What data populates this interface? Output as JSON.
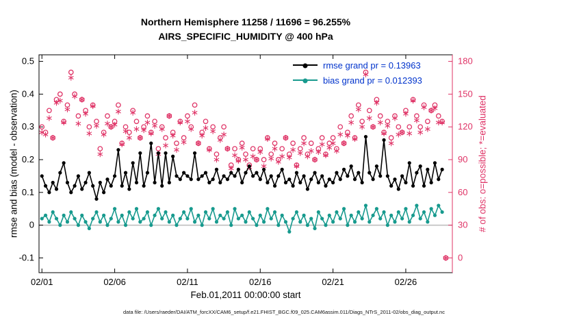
{
  "titles": {
    "line1": "Northern Hemisphere 11258 / 11696 = 96.255%",
    "line2": "AIRS_SPECIFIC_HUMIDITY @ 400 hPa"
  },
  "axes": {
    "left_label": "rmse and bias (model - observation)",
    "right_label": "# of obs: o=possible; *=evaluated",
    "x_label": "Feb.01,2011 00:00:00 start",
    "left_ticks": [
      -0.1,
      0,
      0.1,
      0.2,
      0.3,
      0.4,
      0.5
    ],
    "left_tick_labels": [
      "-0.1",
      "0",
      "0.1",
      "0.2",
      "0.3",
      "0.4",
      "0.5"
    ],
    "right_ticks": [
      0,
      30,
      60,
      90,
      120,
      150,
      180
    ],
    "right_tick_labels": [
      "0",
      "30",
      "60",
      "90",
      "120",
      "150",
      "180"
    ],
    "x_tick_days": [
      1,
      6,
      11,
      16,
      21,
      26
    ],
    "x_tick_labels": [
      "02/01",
      "02/06",
      "02/11",
      "02/16",
      "02/21",
      "02/26"
    ]
  },
  "legend": {
    "rmse_label": "rmse grand pr = 0.13963",
    "bias_label": "bias grand pr = 0.012393"
  },
  "caption": "data file: /Users/raeder/DAI/ATM_forcXX/CAM6_setup/f.e21.FHIST_BGC.f09_025.CAM6assim.011/Diags_NTrS_2011-02/obs_diag_output.nc",
  "colors": {
    "rmse": "#000000",
    "bias": "#179a8e",
    "obs": "#df3366",
    "legend_text": "#0033cc",
    "zero_line": "#bfbfbf",
    "axis": "#000000"
  },
  "chart_data": {
    "type": "line",
    "title": "Northern Hemisphere 11258 / 11696 = 96.255% — AIRS_SPECIFIC_HUMIDITY @ 400 hPa",
    "xlabel": "Feb.01,2011 00:00:00 start",
    "ylabel_left": "rmse and bias (model - observation)",
    "ylabel_right": "# of obs: o=possible; *=evaluated",
    "xlim": [
      0.8,
      29.2
    ],
    "left_ylim": [
      -0.145,
      0.52
    ],
    "right_ylim": [
      -13.5,
      186
    ],
    "right_axis_relation": "right = (left + 0.1) * 300",
    "grid": false,
    "legend_position": "top-right-inside",
    "x_days": [
      1,
      1.25,
      1.5,
      1.75,
      2,
      2.25,
      2.5,
      2.75,
      3,
      3.25,
      3.5,
      3.75,
      4,
      4.25,
      4.5,
      4.75,
      5,
      5.25,
      5.5,
      5.75,
      6,
      6.25,
      6.5,
      6.75,
      7,
      7.25,
      7.5,
      7.75,
      8,
      8.25,
      8.5,
      8.75,
      9,
      9.25,
      9.5,
      9.75,
      10,
      10.25,
      10.5,
      10.75,
      11,
      11.25,
      11.5,
      11.75,
      12,
      12.25,
      12.5,
      12.75,
      13,
      13.25,
      13.5,
      13.75,
      14,
      14.25,
      14.5,
      14.75,
      15,
      15.25,
      15.5,
      15.75,
      16,
      16.25,
      16.5,
      16.75,
      17,
      17.25,
      17.5,
      17.75,
      18,
      18.25,
      18.5,
      18.75,
      19,
      19.25,
      19.5,
      19.75,
      20,
      20.25,
      20.5,
      20.75,
      21,
      21.25,
      21.5,
      21.75,
      22,
      22.25,
      22.5,
      22.75,
      23,
      23.25,
      23.5,
      23.75,
      24,
      24.25,
      24.5,
      24.75,
      25,
      25.25,
      25.5,
      25.75,
      26,
      26.25,
      26.5,
      26.75,
      27,
      27.25,
      27.5,
      27.75,
      28,
      28.25,
      28.5,
      28.75
    ],
    "series": [
      {
        "name": "rmse",
        "axis": "left",
        "marker": "filled-circle",
        "values": [
          0.15,
          0.12,
          0.1,
          0.13,
          0.11,
          0.16,
          0.19,
          0.13,
          0.1,
          0.12,
          0.15,
          0.11,
          0.13,
          0.16,
          0.12,
          0.08,
          0.13,
          0.1,
          0.14,
          0.12,
          0.15,
          0.23,
          0.12,
          0.16,
          0.11,
          0.19,
          0.13,
          0.22,
          0.12,
          0.16,
          0.25,
          0.13,
          0.22,
          0.12,
          0.22,
          0.13,
          0.21,
          0.15,
          0.14,
          0.16,
          0.15,
          0.14,
          0.22,
          0.14,
          0.15,
          0.16,
          0.13,
          0.14,
          0.17,
          0.13,
          0.15,
          0.14,
          0.16,
          0.15,
          0.17,
          0.13,
          0.16,
          0.18,
          0.15,
          0.16,
          0.14,
          0.17,
          0.13,
          0.15,
          0.12,
          0.15,
          0.17,
          0.13,
          0.14,
          0.12,
          0.16,
          0.13,
          0.15,
          0.11,
          0.14,
          0.16,
          0.13,
          0.15,
          0.12,
          0.14,
          0.13,
          0.16,
          0.14,
          0.17,
          0.15,
          0.18,
          0.14,
          0.16,
          0.13,
          0.27,
          0.16,
          0.14,
          0.18,
          0.15,
          0.26,
          0.15,
          0.12,
          0.14,
          0.11,
          0.15,
          0.13,
          0.19,
          0.12,
          0.16,
          0.18,
          0.12,
          0.17,
          0.13,
          0.19,
          0.14,
          0.17,
          null
        ]
      },
      {
        "name": "bias",
        "axis": "left",
        "marker": "filled-circle",
        "values": [
          0.02,
          0.03,
          0.01,
          0.04,
          0.02,
          0.0,
          0.03,
          0.01,
          0.04,
          0.02,
          0.0,
          0.03,
          0.01,
          -0.01,
          0.02,
          0.04,
          0.01,
          0.03,
          0.0,
          0.02,
          0.05,
          0.01,
          0.03,
          0.0,
          0.04,
          0.02,
          0.05,
          0.01,
          0.02,
          0.04,
          0.0,
          0.03,
          0.05,
          0.02,
          0.04,
          0.01,
          0.03,
          0.0,
          0.02,
          0.04,
          0.02,
          0.05,
          0.01,
          0.03,
          0.0,
          0.04,
          0.02,
          0.05,
          0.01,
          0.03,
          0.02,
          0.04,
          0.0,
          0.05,
          0.02,
          0.03,
          0.01,
          0.04,
          0.02,
          0.0,
          0.03,
          0.01,
          0.05,
          0.02,
          0.04,
          0.0,
          0.03,
          0.01,
          -0.02,
          0.02,
          0.04,
          0.01,
          0.03,
          0.0,
          0.02,
          -0.01,
          0.04,
          0.02,
          0.0,
          0.03,
          0.01,
          0.04,
          0.02,
          0.05,
          0.0,
          0.03,
          0.01,
          0.04,
          0.02,
          0.06,
          0.01,
          0.03,
          0.05,
          0.02,
          0.04,
          0.0,
          0.03,
          0.01,
          0.04,
          0.02,
          0.05,
          0.01,
          0.03,
          0.06,
          0.02,
          0.04,
          0.01,
          0.05,
          0.03,
          0.06,
          0.04,
          null
        ]
      },
      {
        "name": "possible",
        "axis": "right",
        "marker": "open-circle",
        "values": [
          120,
          115,
          135,
          110,
          145,
          150,
          125,
          140,
          170,
          150,
          130,
          145,
          135,
          120,
          140,
          125,
          100,
          115,
          130,
          120,
          125,
          140,
          105,
          120,
          115,
          135,
          125,
          110,
          120,
          130,
          115,
          125,
          100,
          120,
          110,
          130,
          115,
          105,
          125,
          110,
          130,
          120,
          140,
          105,
          115,
          125,
          100,
          120,
          95,
          110,
          120,
          100,
          85,
          100,
          90,
          105,
          95,
          85,
          100,
          90,
          100,
          90,
          110,
          95,
          105,
          90,
          100,
          110,
          95,
          105,
          85,
          100,
          110,
          95,
          105,
          90,
          100,
          110,
          95,
          105,
          110,
          100,
          120,
          105,
          115,
          130,
          110,
          140,
          125,
          170,
          135,
          120,
          145,
          130,
          115,
          125,
          110,
          130,
          120,
          115,
          135,
          120,
          145,
          130,
          120,
          140,
          125,
          135,
          140,
          130,
          125,
          0
        ]
      },
      {
        "name": "evaluated",
        "axis": "right",
        "marker": "asterisk",
        "values": [
          115,
          113,
          128,
          110,
          142,
          144,
          124,
          136,
          165,
          148,
          123,
          145,
          132,
          114,
          139,
          121,
          95,
          113,
          123,
          120,
          122,
          134,
          104,
          116,
          110,
          133,
          118,
          110,
          117,
          124,
          114,
          121,
          95,
          118,
          103,
          130,
          112,
          99,
          124,
          106,
          125,
          118,
          133,
          105,
          112,
          119,
          99,
          116,
          90,
          108,
          113,
          100,
          82,
          94,
          89,
          101,
          90,
          83,
          93,
          90,
          97,
          84,
          109,
          91,
          100,
          88,
          93,
          110,
          92,
          99,
          84,
          96,
          105,
          93,
          98,
          90,
          97,
          104,
          94,
          101,
          105,
          98,
          113,
          105,
          112,
          124,
          109,
          136,
          120,
          168,
          128,
          120,
          142,
          124,
          114,
          121,
          105,
          128,
          113,
          115,
          132,
          114,
          144,
          126,
          115,
          138,
          118,
          135,
          137,
          124,
          124,
          0
        ]
      }
    ]
  }
}
